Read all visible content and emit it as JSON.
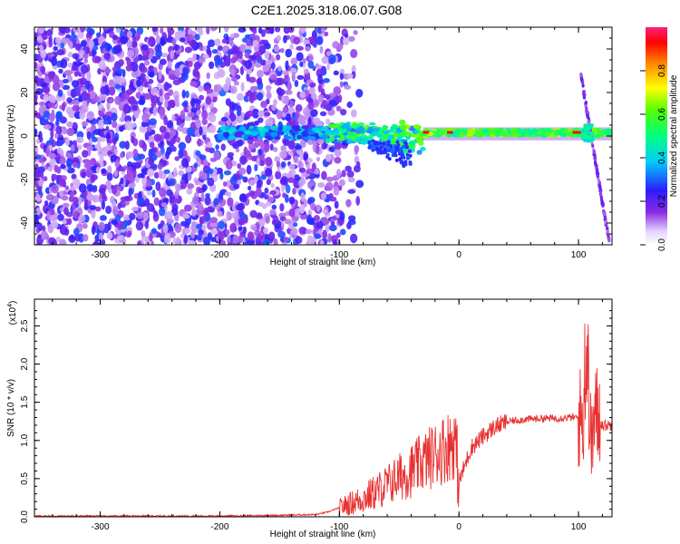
{
  "title": "C2E1.2025.318.06.07.G08",
  "chart_data": [
    {
      "type": "heatmap",
      "xlabel": "Height of straight line (km)",
      "ylabel": "Frequency (Hz)",
      "xlim": [
        -355,
        128
      ],
      "ylim": [
        -50,
        50
      ],
      "xticks": [
        -300,
        -200,
        -100,
        0,
        100
      ],
      "yticks": [
        -40,
        -20,
        0,
        20,
        40
      ],
      "xtick_labels": [
        "-300",
        "-200",
        "-100",
        "0",
        "100"
      ],
      "ytick_labels": [
        "-40",
        "-20",
        "0",
        "20",
        "40"
      ],
      "colorbar": {
        "label": "Normalized spectral amplitude",
        "range": [
          0,
          1
        ],
        "ticks": [
          0.0,
          0.2,
          0.4,
          0.6,
          0.8
        ],
        "tick_labels": [
          "0.0",
          "0.2",
          "0.4",
          "0.6",
          "0.8"
        ]
      },
      "features": [
        {
          "name": "noise",
          "x_range": [
            -355,
            -110
          ],
          "freq_range": [
            -50,
            50
          ]
        },
        {
          "name": "carrier",
          "x_range": [
            -200,
            128
          ],
          "freq": 1.5
        },
        {
          "name": "spur",
          "x_range": [
            100,
            128
          ],
          "freq_range": [
            -50,
            30
          ]
        }
      ]
    },
    {
      "type": "line",
      "xlabel": "Height of straight line (km)",
      "ylabel": "SNR (10 * v/v)",
      "yscale_label": "(x10",
      "yscale_exp": "4",
      "yscale_close": ")",
      "xlim": [
        -355,
        128
      ],
      "ylim": [
        0,
        2.85
      ],
      "xticks": [
        -300,
        -200,
        -100,
        0,
        100
      ],
      "yticks": [
        0.0,
        0.5,
        1.0,
        1.5,
        2.0,
        2.5
      ],
      "xtick_labels": [
        "-300",
        "-200",
        "-100",
        "0",
        "100"
      ],
      "ytick_labels": [
        "0.0",
        "0.5",
        "1.0",
        "1.5",
        "2.0",
        "2.5"
      ],
      "series": [
        {
          "color": "#e83030",
          "x": [
            -355,
            -300,
            -250,
            -200,
            -150,
            -120,
            -110,
            -100,
            -90,
            -80,
            -70,
            -60,
            -50,
            -40,
            -30,
            -20,
            -10,
            -3,
            0,
            10,
            20,
            30,
            40,
            50,
            60,
            70,
            80,
            90,
            100,
            104,
            107,
            110,
            115,
            120,
            128
          ],
          "y": [
            0.01,
            0.01,
            0.01,
            0.01,
            0.02,
            0.03,
            0.06,
            0.12,
            0.18,
            0.24,
            0.32,
            0.42,
            0.52,
            0.6,
            0.72,
            0.82,
            0.92,
            1.0,
            0.45,
            0.9,
            1.05,
            1.18,
            1.24,
            1.27,
            1.28,
            1.29,
            1.29,
            1.3,
            1.3,
            1.28,
            2.1,
            0.95,
            1.35,
            1.2,
            1.2
          ]
        }
      ]
    }
  ]
}
